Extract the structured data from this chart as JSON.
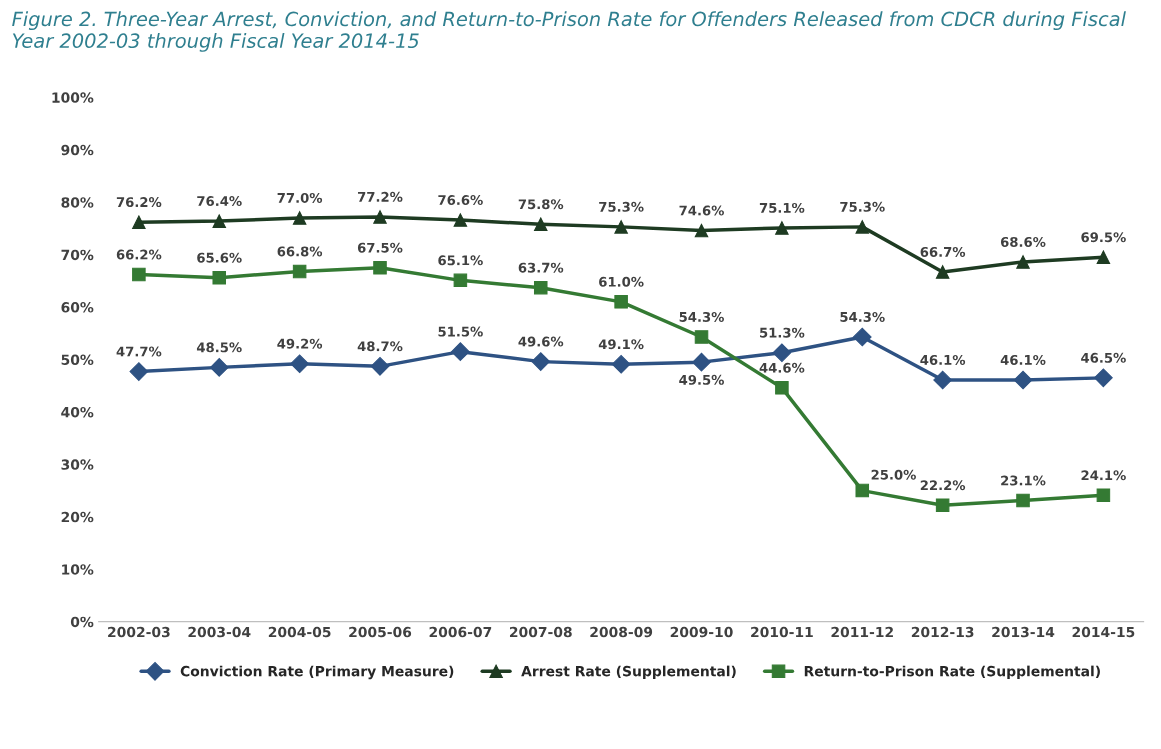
{
  "chart_data": {
    "type": "line",
    "title": "Figure 2. Three-Year Arrest, Conviction, and Return-to-Prison Rate for Offenders Released from CDCR during Fiscal Year 2002-03 through Fiscal Year 2014-15",
    "categories": [
      "2002-03",
      "2003-04",
      "2004-05",
      "2005-06",
      "2006-07",
      "2007-08",
      "2008-09",
      "2009-10",
      "2010-11",
      "2011-12",
      "2012-13",
      "2013-14",
      "2014-15"
    ],
    "series": [
      {
        "name": "Conviction Rate (Primary Measure)",
        "color": "#2e5283",
        "marker": "diamond",
        "values": [
          47.7,
          48.5,
          49.2,
          48.7,
          51.5,
          49.6,
          49.1,
          49.5,
          51.3,
          54.3,
          46.1,
          46.1,
          46.5
        ],
        "value_labels": [
          "47.7%",
          "48.5%",
          "49.2%",
          "48.7%",
          "51.5%",
          "49.6%",
          "49.1%",
          "49.5%",
          "51.3%",
          "54.3%",
          "46.1%",
          "46.1%",
          "46.5%"
        ]
      },
      {
        "name": "Arrest Rate (Supplemental)",
        "color": "#1e3b22",
        "marker": "triangle",
        "values": [
          76.2,
          76.4,
          77.0,
          77.2,
          76.6,
          75.8,
          75.3,
          74.6,
          75.1,
          75.3,
          66.7,
          68.6,
          69.5
        ],
        "value_labels": [
          "76.2%",
          "76.4%",
          "77.0%",
          "77.2%",
          "76.6%",
          "75.8%",
          "75.3%",
          "74.6%",
          "75.1%",
          "75.3%",
          "66.7%",
          "68.6%",
          "69.5%"
        ]
      },
      {
        "name": "Return-to-Prison Rate (Supplemental)",
        "color": "#347a33",
        "marker": "square",
        "values": [
          66.2,
          65.6,
          66.8,
          67.5,
          65.1,
          63.7,
          61.0,
          54.3,
          44.6,
          25.0,
          22.2,
          23.1,
          24.1
        ],
        "value_labels": [
          "66.2%",
          "65.6%",
          "66.8%",
          "67.5%",
          "65.1%",
          "63.7%",
          "61.0%",
          "54.3%",
          "44.6%",
          "25.0%",
          "22.2%",
          "23.1%",
          "24.1%"
        ]
      }
    ],
    "ylim": [
      0,
      100
    ],
    "yticks": [
      {
        "value": 0,
        "label": "0%"
      },
      {
        "value": 10,
        "label": "10%"
      },
      {
        "value": 20,
        "label": "20%"
      },
      {
        "value": 30,
        "label": "30%"
      },
      {
        "value": 40,
        "label": "40%"
      },
      {
        "value": 50,
        "label": "50%"
      },
      {
        "value": 60,
        "label": "60%"
      },
      {
        "value": 70,
        "label": "70%"
      },
      {
        "value": 80,
        "label": "80%"
      },
      {
        "value": 90,
        "label": "90%"
      },
      {
        "value": 100,
        "label": "100%"
      }
    ],
    "grid": false,
    "legend": "bottom"
  }
}
